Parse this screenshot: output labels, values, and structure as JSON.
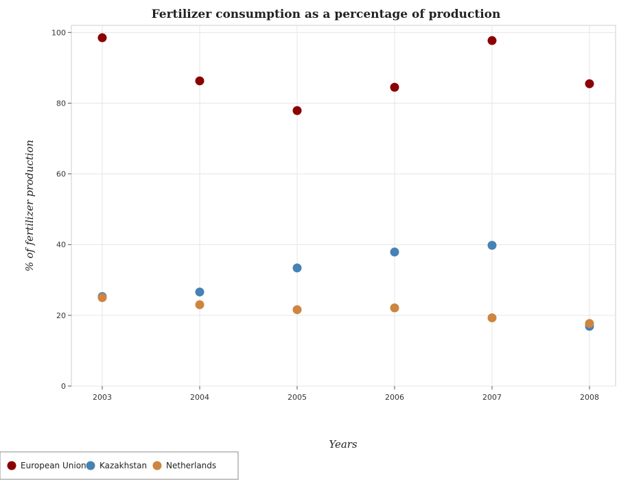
{
  "chart_data": {
    "type": "scatter",
    "title": "Fertilizer consumption as a percentage of production",
    "xlabel": "Years",
    "ylabel": "% of fertilizer production",
    "categories": [
      "2003",
      "2004",
      "2005",
      "2006",
      "2007",
      "2008"
    ],
    "ylim": [
      0,
      102
    ],
    "yticks": [
      "0",
      "20",
      "40",
      "60",
      "80",
      "100"
    ],
    "grid": true,
    "legend_position": "bottom-left",
    "series": [
      {
        "name": "European Union",
        "color": "#8b0000",
        "values": [
          98.5,
          86.3,
          77.9,
          84.5,
          97.7,
          85.5
        ]
      },
      {
        "name": "Kazakhstan",
        "color": "#4682b4",
        "values": [
          25.3,
          26.6,
          33.4,
          37.9,
          39.8,
          16.9
        ]
      },
      {
        "name": "Netherlands",
        "color": "#cd853f",
        "values": [
          25.0,
          23.0,
          21.6,
          22.1,
          19.3,
          17.7
        ]
      }
    ]
  }
}
